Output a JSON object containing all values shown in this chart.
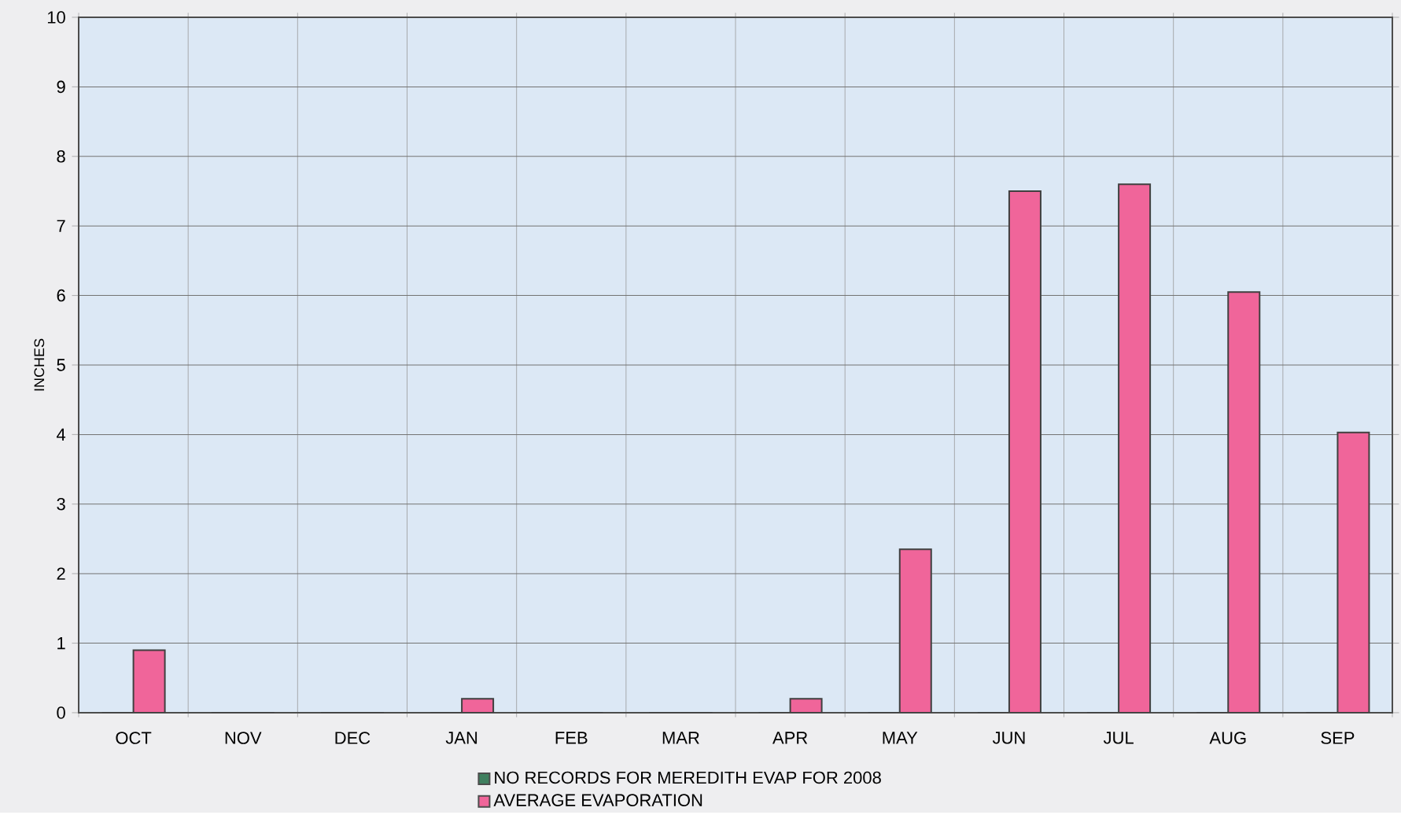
{
  "chart_data": {
    "type": "bar",
    "ylabel": "INCHES",
    "categories": [
      "OCT",
      "NOV",
      "DEC",
      "JAN",
      "FEB",
      "MAR",
      "APR",
      "MAY",
      "JUN",
      "JUL",
      "AUG",
      "SEP"
    ],
    "series": [
      {
        "name": "NO RECORDS FOR MEREDITH EVAP FOR 2008",
        "color": "#3f7f5f",
        "values": [
          0,
          0,
          0,
          0,
          0,
          0,
          0,
          0,
          0,
          0,
          0,
          0
        ]
      },
      {
        "name": "AVERAGE EVAPORATION",
        "color": "#f0659a",
        "values": [
          0.9,
          0,
          0,
          0.2,
          0,
          0,
          0.2,
          2.35,
          7.5,
          7.6,
          6.05,
          4.03
        ]
      }
    ],
    "ylim": [
      0,
      10
    ],
    "yticks": [
      0,
      1,
      2,
      3,
      4,
      5,
      6,
      7,
      8,
      9,
      10
    ],
    "grid": true,
    "legend": "bottom"
  }
}
